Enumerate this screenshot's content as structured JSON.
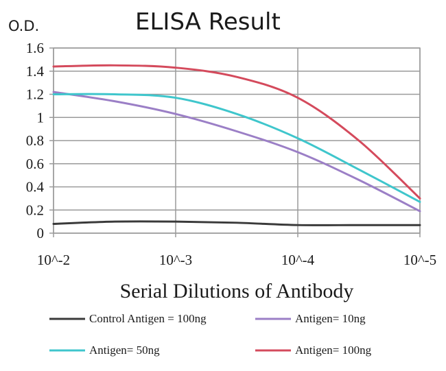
{
  "chart_data": {
    "type": "line",
    "title": "ELISA Result",
    "ylabel": "O.D.",
    "xlabel": "Serial Dilutions of Antibody",
    "categories": [
      "10^-2",
      "10^-3",
      "10^-4",
      "10^-5"
    ],
    "x": [
      0,
      0.5,
      1,
      1.5,
      2,
      2.5,
      3
    ],
    "ylim": [
      0,
      1.6
    ],
    "yticks": [
      "0",
      "0.2",
      "0.4",
      "0.6",
      "0.8",
      "1",
      "1.2",
      "1.4",
      "1.6"
    ],
    "grid": true,
    "legend_position": "bottom",
    "series": [
      {
        "name": "Control Antigen = 100ng",
        "color": "#3a3a3a",
        "values": [
          0.08,
          0.1,
          0.1,
          0.09,
          0.07,
          0.07,
          0.07
        ]
      },
      {
        "name": "Antigen= 10ng",
        "color": "#9b7fc6",
        "values": [
          1.22,
          1.14,
          1.03,
          0.88,
          0.7,
          0.46,
          0.19
        ]
      },
      {
        "name": "Antigen= 50ng",
        "color": "#3fc6cc",
        "values": [
          1.2,
          1.2,
          1.17,
          1.03,
          0.82,
          0.55,
          0.27
        ]
      },
      {
        "name": "Antigen= 100ng",
        "color": "#d44a5c",
        "values": [
          1.44,
          1.45,
          1.43,
          1.35,
          1.17,
          0.8,
          0.3
        ]
      }
    ]
  }
}
